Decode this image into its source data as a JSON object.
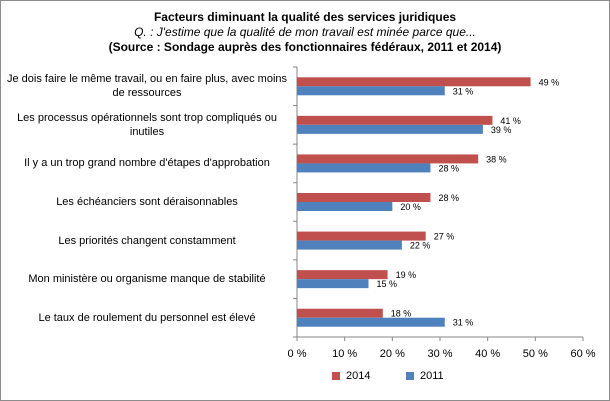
{
  "chart_data": {
    "type": "bar",
    "orientation": "horizontal",
    "title": "Facteurs diminuant la qualité des services juridiques",
    "subtitle": "Q. : J'estime que la qualité de mon travail est minée parce que...",
    "source": "(Source : Sondage auprès des fonctionnaires  fédéraux, 2011 et 2014)",
    "categories": [
      "Je dois faire le même travail, ou en faire plus, avec moins de ressources",
      "Les processus opérationnels sont trop compliqués ou inutiles",
      "Il y  a un trop grand nombre d'étapes d'approbation",
      "Les échéanciers sont déraisonnables",
      "Les priorités changent constamment",
      "Mon ministère ou organisme manque de stabilité",
      "Le taux de roulement du personnel est élevé"
    ],
    "series": [
      {
        "name": "2014",
        "color": "#c0504d",
        "values": [
          49,
          41,
          38,
          28,
          27,
          19,
          18
        ]
      },
      {
        "name": "2011",
        "color": "#4f81bd",
        "values": [
          31,
          39,
          28,
          20,
          22,
          15,
          31
        ]
      }
    ],
    "value_suffix": " %",
    "xlim": [
      0,
      60
    ],
    "xticks": [
      "0 %",
      "10 %",
      "20 %",
      "30 %",
      "40 %",
      "50 %",
      "60 %"
    ],
    "grid": false,
    "legend_position": "bottom"
  }
}
